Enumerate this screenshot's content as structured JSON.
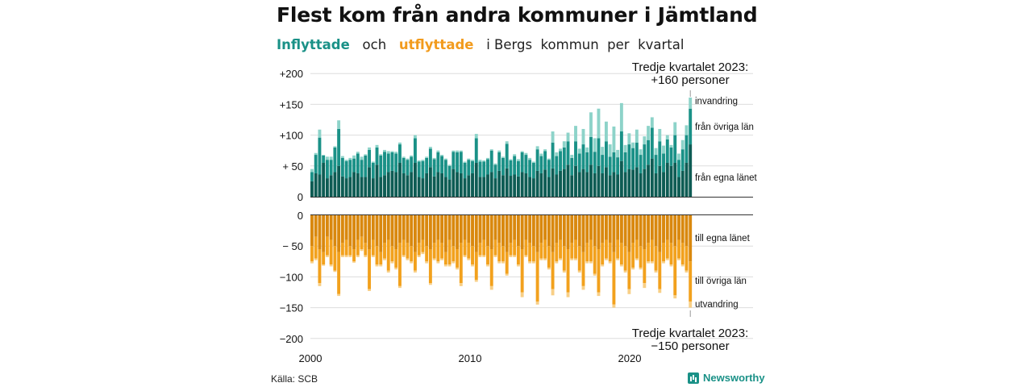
{
  "title": "Flest kom från andra kommuner i Jämtland",
  "subtitle": {
    "in_word": "Inflyttade",
    "and_word": "och",
    "out_word": "utflyttade",
    "rest": "i Bergs  kommun  per  kvartal"
  },
  "source": "Källa: SCB",
  "brand": "Newsworthy",
  "colors": {
    "in_egna": "#0e5c54",
    "in_ovriga": "#1a9187",
    "in_invandring": "#8dd3c9",
    "out_egna": "#d9880e",
    "out_ovriga": "#f2a11d",
    "out_utvandring": "#f8cf86"
  },
  "chart_data": {
    "type": "bar",
    "stacked": true,
    "x_start": "2000 Q1",
    "x_ticks": [
      "2000",
      "2010",
      "2020"
    ],
    "top_panel": {
      "yticks": [
        "+200",
        "+150",
        "+100",
        "+ 50",
        "0"
      ],
      "ylim": [
        0,
        200
      ],
      "annotation": [
        "Tredje kvartalet 2023:",
        "+160 personer"
      ],
      "series": [
        {
          "name": "från egna länet",
          "values": [
            25,
            38,
            36,
            55,
            30,
            35,
            40,
            50,
            33,
            30,
            32,
            40,
            38,
            32,
            32,
            48,
            30,
            52,
            32,
            35,
            40,
            42,
            40,
            55,
            38,
            35,
            40,
            55,
            32,
            30,
            38,
            48,
            33,
            40,
            38,
            32,
            28,
            45,
            40,
            38,
            30,
            35,
            38,
            55,
            32,
            32,
            36,
            40,
            30,
            42,
            35,
            46,
            34,
            36,
            33,
            40,
            38,
            32,
            30,
            42,
            38,
            44,
            32,
            46,
            36,
            42,
            45,
            52,
            35,
            50,
            40,
            45,
            40,
            52,
            38,
            50,
            38,
            48,
            35,
            40,
            36,
            58,
            40,
            45,
            44,
            48,
            38,
            45,
            52,
            62,
            38,
            50,
            40,
            55,
            50,
            55,
            32,
            42,
            55,
            85
          ]
        },
        {
          "name": "från övriga län",
          "values": [
            15,
            30,
            60,
            12,
            30,
            25,
            40,
            60,
            30,
            28,
            28,
            22,
            32,
            28,
            35,
            28,
            25,
            28,
            35,
            38,
            30,
            30,
            30,
            30,
            25,
            25,
            25,
            40,
            25,
            28,
            25,
            30,
            28,
            32,
            28,
            28,
            22,
            28,
            32,
            35,
            25,
            25,
            20,
            40,
            25,
            25,
            25,
            35,
            22,
            30,
            28,
            40,
            25,
            30,
            25,
            32,
            30,
            28,
            25,
            35,
            28,
            30,
            28,
            42,
            30,
            32,
            35,
            38,
            28,
            40,
            30,
            40,
            32,
            45,
            35,
            45,
            30,
            42,
            30,
            32,
            28,
            48,
            32,
            40,
            35,
            40,
            30,
            40,
            40,
            50,
            30,
            40,
            30,
            38,
            30,
            45,
            28,
            35,
            45,
            58
          ]
        },
        {
          "name": "invandring",
          "values": [
            5,
            3,
            13,
            1,
            5,
            5,
            2,
            14,
            3,
            2,
            3,
            5,
            3,
            5,
            2,
            4,
            2,
            4,
            2,
            3,
            4,
            2,
            3,
            3,
            2,
            2,
            2,
            5,
            2,
            2,
            2,
            3,
            2,
            3,
            2,
            2,
            2,
            2,
            3,
            2,
            2,
            2,
            2,
            7,
            3,
            2,
            2,
            2,
            2,
            3,
            2,
            4,
            2,
            3,
            3,
            2,
            3,
            3,
            2,
            5,
            4,
            3,
            2,
            18,
            6,
            4,
            10,
            14,
            5,
            25,
            8,
            25,
            8,
            40,
            22,
            48,
            13,
            32,
            20,
            42,
            12,
            46,
            12,
            18,
            9,
            21,
            9,
            13,
            23,
            17,
            11,
            20,
            13,
            7,
            4,
            21,
            10,
            15,
            16,
            18
          ]
        }
      ],
      "series_labels": [
        "invandring",
        "från övriga län",
        "från egna länet"
      ]
    },
    "bottom_panel": {
      "yticks": [
        "0",
        "− 50",
        "−100",
        "−150",
        "−200"
      ],
      "ylim": [
        -200,
        0
      ],
      "annotation": [
        "Tredje kvartalet 2023:",
        "−150 personer"
      ],
      "series": [
        {
          "name": "till egna länet",
          "values": [
            -50,
            -35,
            -55,
            -60,
            -35,
            -40,
            -50,
            -60,
            -45,
            -40,
            -50,
            -55,
            -40,
            -35,
            -45,
            -55,
            -40,
            -50,
            -60,
            -45,
            -40,
            -50,
            -55,
            -45,
            -40,
            -45,
            -50,
            -60,
            -45,
            -40,
            -50,
            -55,
            -45,
            -40,
            -45,
            -60,
            -40,
            -50,
            -55,
            -45,
            -40,
            -45,
            -50,
            -60,
            -45,
            -40,
            -50,
            -55,
            -40,
            -45,
            -50,
            -60,
            -45,
            -40,
            -50,
            -55,
            -40,
            -45,
            -50,
            -60,
            -45,
            -40,
            -50,
            -60,
            -45,
            -40,
            -50,
            -55,
            -45,
            -40,
            -50,
            -60,
            -45,
            -40,
            -50,
            -55,
            -45,
            -40,
            -45,
            -60,
            -40,
            -45,
            -50,
            -60,
            -45,
            -40,
            -50,
            -55,
            -45,
            -40,
            -50,
            -60,
            -45,
            -40,
            -45,
            -50,
            -40,
            -45,
            -50,
            -75
          ]
        },
        {
          "name": "till övriga län",
          "values": [
            -25,
            -35,
            -55,
            -20,
            -30,
            -40,
            -40,
            -68,
            -20,
            -25,
            -15,
            -20,
            -25,
            -20,
            -20,
            -65,
            -25,
            -30,
            -20,
            -25,
            -50,
            -25,
            -30,
            -70,
            -25,
            -25,
            -25,
            -30,
            -20,
            -20,
            -25,
            -55,
            -25,
            -35,
            -25,
            -20,
            -40,
            -25,
            -30,
            -65,
            -25,
            -25,
            -30,
            -45,
            -20,
            -25,
            -30,
            -60,
            -25,
            -30,
            -25,
            -35,
            -20,
            -25,
            -30,
            -70,
            -25,
            -30,
            -25,
            -80,
            -25,
            -30,
            -35,
            -60,
            -30,
            -30,
            -40,
            -70,
            -25,
            -30,
            -40,
            -55,
            -30,
            -35,
            -45,
            -70,
            -35,
            -30,
            -30,
            -85,
            -30,
            -35,
            -40,
            -60,
            -40,
            -30,
            -35,
            -55,
            -30,
            -35,
            -40,
            -60,
            -30,
            -30,
            -35,
            -80,
            -30,
            -35,
            -40,
            -65
          ]
        },
        {
          "name": "utvandring",
          "values": [
            -3,
            -3,
            -5,
            -2,
            -3,
            -3,
            -2,
            -3,
            -3,
            -3,
            -3,
            -2,
            -3,
            -3,
            -3,
            -3,
            -3,
            -3,
            -3,
            -3,
            -3,
            -3,
            -3,
            -3,
            -3,
            -3,
            -3,
            -3,
            -3,
            -3,
            -3,
            -3,
            -3,
            -3,
            -3,
            -3,
            -3,
            -3,
            -3,
            -5,
            -3,
            -3,
            -3,
            -3,
            -3,
            -3,
            -3,
            -6,
            -3,
            -3,
            -3,
            -3,
            -3,
            -3,
            -3,
            -8,
            -3,
            -3,
            -3,
            -5,
            -3,
            -3,
            -3,
            -10,
            -3,
            -3,
            -3,
            -8,
            -3,
            -3,
            -3,
            -6,
            -3,
            -3,
            -3,
            -6,
            -3,
            -3,
            -3,
            -5,
            -3,
            -3,
            -3,
            -8,
            -3,
            -3,
            -3,
            -8,
            -3,
            -3,
            -3,
            -6,
            -3,
            -3,
            -3,
            -5,
            -3,
            -3,
            -3,
            -10
          ]
        }
      ],
      "series_labels": [
        "till egna länet",
        "till övriga län",
        "utvandring"
      ]
    }
  }
}
